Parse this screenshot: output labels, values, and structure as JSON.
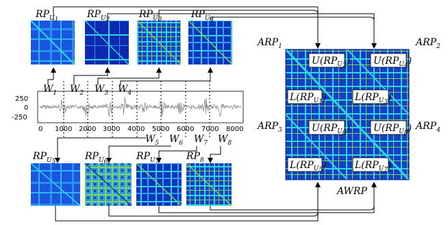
{
  "top_labels": [
    {
      "main": "RP",
      "sub": "U",
      "idx": "1"
    },
    {
      "main": "RP",
      "sub": "U",
      "idx": "2"
    },
    {
      "main": "RP",
      "sub": "U",
      "idx": "3"
    },
    {
      "main": "RP",
      "sub": "U",
      "idx": "4"
    }
  ],
  "bottom_labels": [
    {
      "main": "RP",
      "sub": "U",
      "idx": "5"
    },
    {
      "main": "RP",
      "sub": "U",
      "idx": "6"
    },
    {
      "main": "RP",
      "sub": "U",
      "idx": "7"
    },
    {
      "main": "RP",
      "sub": "U",
      "idx": "8"
    }
  ],
  "windows_top": [
    {
      "main": "W",
      "idx": "1"
    },
    {
      "main": "W",
      "idx": "2"
    },
    {
      "main": "W",
      "idx": "3"
    },
    {
      "main": "W",
      "idx": "4"
    }
  ],
  "windows_bottom": [
    {
      "main": "W",
      "idx": "5"
    },
    {
      "main": "W",
      "idx": "6"
    },
    {
      "main": "W",
      "idx": "7"
    },
    {
      "main": "W",
      "idx": "8"
    }
  ],
  "signal": {
    "y_ticks": [
      "250",
      "0",
      "-250"
    ],
    "x_ticks": [
      "0",
      "1000",
      "2000",
      "3000",
      "4000",
      "5000",
      "6000",
      "7000",
      "8000"
    ]
  },
  "arp": {
    "labels": [
      {
        "main": "ARP",
        "idx": "1"
      },
      {
        "main": "ARP",
        "idx": "2"
      },
      {
        "main": "ARP",
        "idx": "3"
      },
      {
        "main": "ARP",
        "idx": "4"
      }
    ],
    "awrp_label": "AWRP",
    "boxes": [
      {
        "fn": "U",
        "idx": "2"
      },
      {
        "fn": "U",
        "idx": "4"
      },
      {
        "fn": "L",
        "idx": "1"
      },
      {
        "fn": "L",
        "idx": "3"
      },
      {
        "fn": "U",
        "idx": "6"
      },
      {
        "fn": "U",
        "idx": "8"
      },
      {
        "fn": "L",
        "idx": "5"
      },
      {
        "fn": "L",
        "idx": "7"
      }
    ]
  },
  "colors": {
    "deep_blue": "#0c2ab0",
    "mid_blue": "#1a55e0",
    "cyan": "#2fd6e6",
    "green": "#7ad36b",
    "signal": "#8a8a8a"
  }
}
